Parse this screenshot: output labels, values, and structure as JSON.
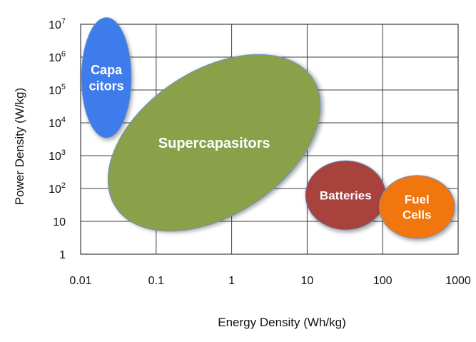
{
  "chart_data": {
    "type": "scatter",
    "title": "",
    "xlabel": "Energy Density (Wh/kg)",
    "ylabel": "Power Density (W/kg)",
    "xscale": "log",
    "yscale": "log",
    "xlim": [
      0.01,
      1000
    ],
    "ylim": [
      1,
      10000000
    ],
    "grid": true,
    "x_ticks": [
      {
        "value": 0.01,
        "label": "0.01"
      },
      {
        "value": 0.1,
        "label": "0.1"
      },
      {
        "value": 1,
        "label": "1"
      },
      {
        "value": 10,
        "label": "10"
      },
      {
        "value": 100,
        "label": "100"
      },
      {
        "value": 1000,
        "label": "1000"
      }
    ],
    "y_ticks": [
      {
        "value": 1,
        "base": "1",
        "exp": ""
      },
      {
        "value": 10,
        "base": "10",
        "exp": ""
      },
      {
        "value": 100,
        "base": "10",
        "exp": "2"
      },
      {
        "value": 1000,
        "base": "10",
        "exp": "3"
      },
      {
        "value": 10000,
        "base": "10",
        "exp": "4"
      },
      {
        "value": 100000,
        "base": "10",
        "exp": "5"
      },
      {
        "value": 1000000,
        "base": "10",
        "exp": "6"
      },
      {
        "value": 10000000,
        "base": "10",
        "exp": "7"
      }
    ],
    "regions": [
      {
        "id": "supercapacitors",
        "lines": [
          "Supercapasitors"
        ],
        "color": "#8aa04a",
        "x_range": [
          0.023,
          15
        ],
        "y_range": [
          5,
          1200000
        ],
        "rotation_deg": 33,
        "font_size": 20
      },
      {
        "id": "batteries",
        "lines": [
          "Batteries"
        ],
        "color": "#a8423e",
        "x_range": [
          9.5,
          110
        ],
        "y_range": [
          5.5,
          700
        ],
        "rotation_deg": 0,
        "font_size": 17
      },
      {
        "id": "fuel-cells",
        "lines": [
          "Fuel",
          "Cells"
        ],
        "color": "#f0760f",
        "x_range": [
          90,
          900
        ],
        "y_range": [
          3,
          250
        ],
        "rotation_deg": 0,
        "font_size": 17
      },
      {
        "id": "capacitors",
        "lines": [
          "Capa",
          "citors"
        ],
        "color": "#3d7bea",
        "x_range": [
          0.0103,
          0.0468
        ],
        "y_range": [
          3500,
          16000000
        ],
        "rotation_deg": 0,
        "font_size": 18
      }
    ]
  }
}
